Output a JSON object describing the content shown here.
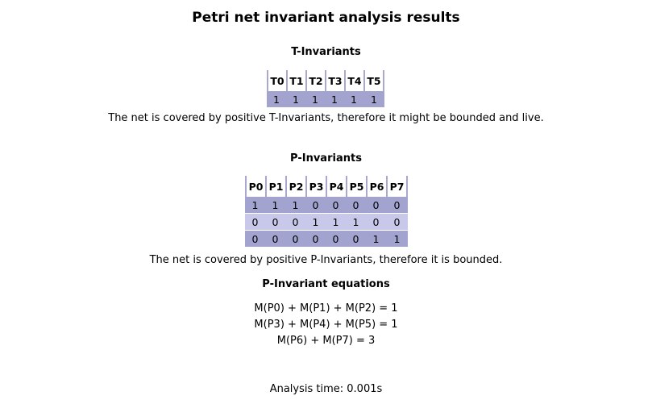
{
  "title": "Petri net invariant analysis results",
  "t_invariants": {
    "heading": "T-Invariants",
    "columns": [
      "T0",
      "T1",
      "T2",
      "T3",
      "T4",
      "T5"
    ],
    "rows": [
      [
        "1",
        "1",
        "1",
        "1",
        "1",
        "1"
      ]
    ],
    "summary": "The net is covered by positive T-Invariants, therefore it might be bounded and live."
  },
  "p_invariants": {
    "heading": "P-Invariants",
    "columns": [
      "P0",
      "P1",
      "P2",
      "P3",
      "P4",
      "P5",
      "P6",
      "P7"
    ],
    "rows": [
      [
        "1",
        "1",
        "1",
        "0",
        "0",
        "0",
        "0",
        "0"
      ],
      [
        "0",
        "0",
        "0",
        "1",
        "1",
        "1",
        "0",
        "0"
      ],
      [
        "0",
        "0",
        "0",
        "0",
        "0",
        "0",
        "1",
        "1"
      ]
    ],
    "summary": "The net is covered by positive P-Invariants, therefore it is bounded."
  },
  "equations": {
    "heading": "P-Invariant equations",
    "lines": [
      "M(P0) + M(P1) + M(P2) = 1",
      "M(P3) + M(P4) + M(P5) = 1",
      "M(P6) + M(P7) = 3"
    ]
  },
  "analysis_time": "Analysis time: 0.001s",
  "colors": {
    "row_dark": "#a3a3cf",
    "row_light": "#c8c8eb",
    "header_border": "#a8a8d0"
  }
}
